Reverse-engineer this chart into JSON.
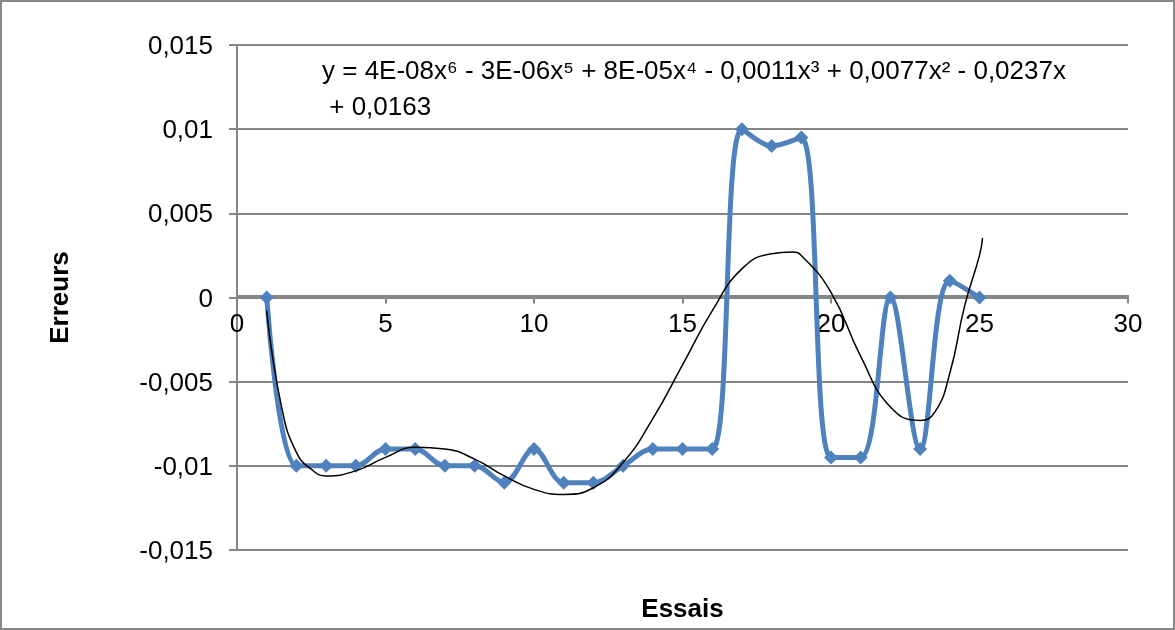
{
  "chart_data": {
    "type": "line",
    "xlabel": "Essais",
    "ylabel": "Erreurs",
    "annotations": [
      "y = 4E-08x⁶ - 3E-06x⁵ + 8E-05x⁴ - 0,0011x³ + 0,0077x² - 0,0237x + 0,0163"
    ],
    "xlim": [
      0,
      30
    ],
    "xticks": [
      0,
      5,
      10,
      15,
      20,
      25,
      30
    ],
    "ylim": [
      -0.015,
      0.015
    ],
    "yticks": [
      {
        "value": -0.015,
        "label": "-0,015"
      },
      {
        "value": -0.01,
        "label": "-0,01"
      },
      {
        "value": -0.005,
        "label": "-0,005"
      },
      {
        "value": 0,
        "label": "0"
      },
      {
        "value": 0.005,
        "label": "0,005"
      },
      {
        "value": 0.01,
        "label": "0,01"
      },
      {
        "value": 0.015,
        "label": "0,015"
      }
    ],
    "grid": "y",
    "series": [
      {
        "color": "#4f81bd",
        "marker": "diamond",
        "x": [
          1,
          2,
          3,
          4,
          5,
          6,
          7,
          8,
          9,
          10,
          11,
          12,
          13,
          14,
          15,
          16,
          17,
          18,
          19,
          20,
          21,
          22,
          23,
          24,
          25
        ],
        "values": [
          0,
          -0.01,
          -0.01,
          -0.01,
          -0.009,
          -0.009,
          -0.01,
          -0.01,
          -0.011,
          -0.009,
          -0.011,
          -0.011,
          -0.01,
          -0.009,
          -0.009,
          -0.009,
          0.01,
          0.009,
          0.0095,
          -0.0095,
          -0.0095,
          0,
          -0.009,
          0.001,
          0
        ]
      },
      {
        "color": "#000000",
        "marker": "none",
        "x": [
          1,
          1.5,
          2,
          2.5,
          3,
          4,
          5,
          6,
          7,
          8,
          9,
          10,
          11,
          12,
          13,
          14,
          15,
          16,
          17,
          18,
          18.7,
          19,
          20,
          21,
          22,
          23,
          23.5,
          24,
          24.5,
          25,
          25.1
        ],
        "values": [
          -0.0008,
          -0.0065,
          -0.0092,
          -0.0102,
          -0.0106,
          -0.0103,
          -0.0095,
          -0.0089,
          -0.009,
          -0.0096,
          -0.0106,
          -0.0114,
          -0.0117,
          -0.0113,
          -0.0098,
          -0.0072,
          -0.004,
          -0.0008,
          0.0017,
          0.0026,
          0.0027,
          0.0025,
          0.0003,
          -0.0035,
          -0.0065,
          -0.0073,
          -0.0068,
          -0.0045,
          -0.0005,
          0.0025,
          0.0035
        ]
      }
    ]
  }
}
